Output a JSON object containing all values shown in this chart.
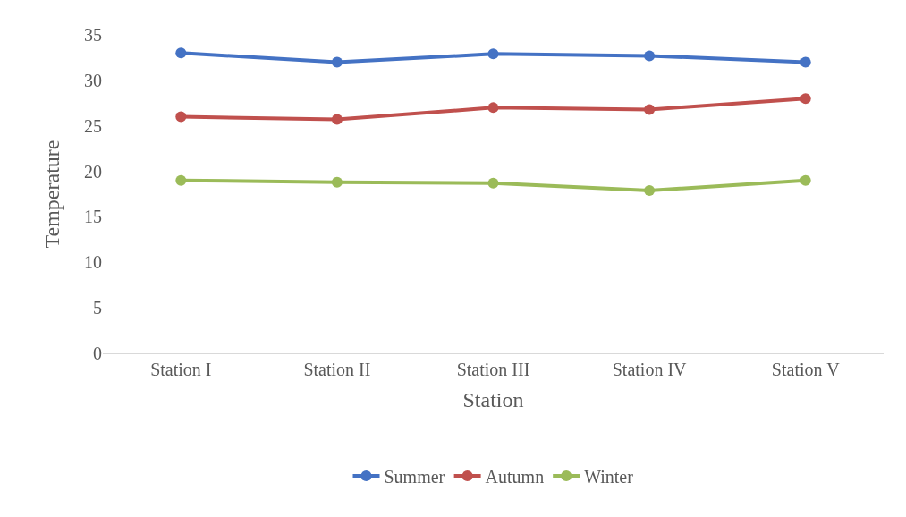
{
  "chart_data": {
    "type": "line",
    "xlabel": "Station",
    "ylabel": "Temperature",
    "categories": [
      "Station I",
      "Station II",
      "Station III",
      "Station IV",
      "Station V"
    ],
    "series": [
      {
        "name": "Summer",
        "color": "#4472c4",
        "values": [
          33,
          32,
          32.9,
          32.7,
          32
        ]
      },
      {
        "name": "Autumn",
        "color": "#c0504d",
        "values": [
          26,
          25.7,
          27,
          26.8,
          28
        ]
      },
      {
        "name": "Winter",
        "color": "#9bbb59",
        "values": [
          19,
          18.8,
          18.7,
          17.9,
          19
        ]
      }
    ],
    "ylim": [
      0,
      35
    ],
    "yticks": [
      0,
      5,
      10,
      15,
      20,
      25,
      30,
      35
    ],
    "grid": false,
    "legend": "bottom",
    "marker": "circle",
    "line_style": "solid"
  }
}
